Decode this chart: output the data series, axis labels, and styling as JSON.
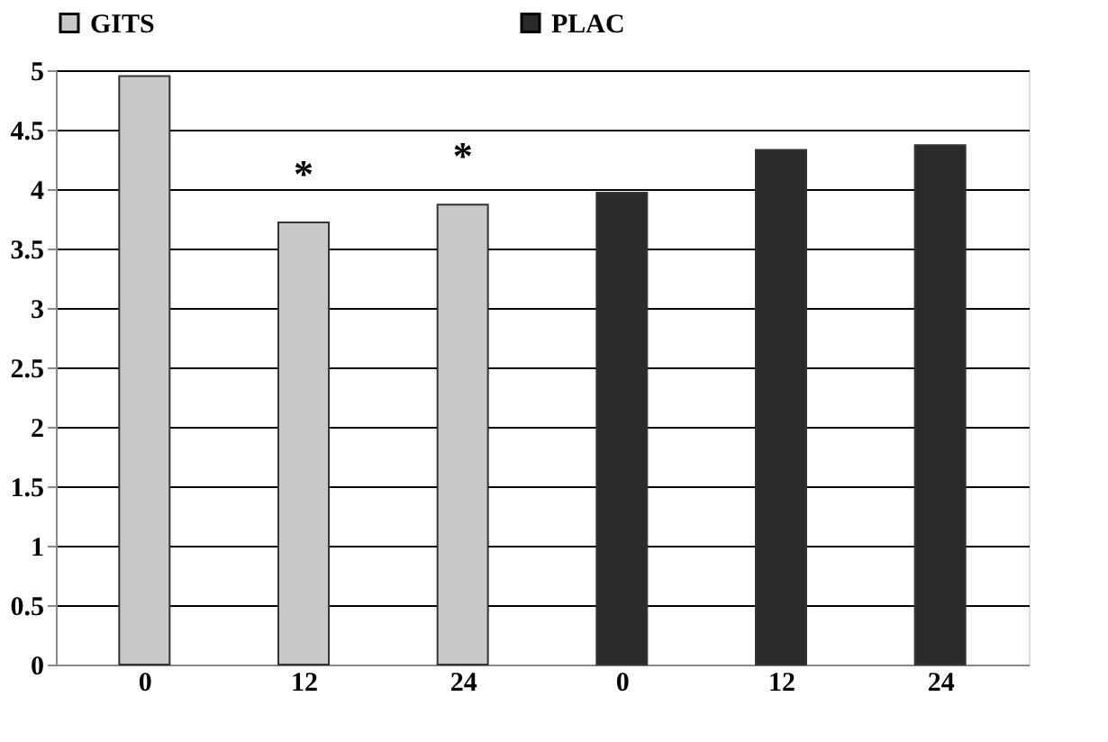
{
  "chart_data": {
    "type": "bar",
    "categories": [
      "0",
      "12",
      "24",
      "0",
      "12",
      "24"
    ],
    "series": [
      {
        "name": "GITS",
        "color": "#c8c8c8",
        "values": [
          4.95,
          3.72,
          3.87,
          null,
          null,
          null
        ]
      },
      {
        "name": "PLAC",
        "color": "#2a2a2a",
        "values": [
          null,
          null,
          null,
          3.97,
          4.33,
          4.37
        ]
      }
    ],
    "ylim": [
      0,
      5
    ],
    "yticks": [
      0,
      0.5,
      1,
      1.5,
      2,
      2.5,
      3,
      3.5,
      4,
      4.5,
      5
    ],
    "grid": "y",
    "legend": "top",
    "annotations": [
      "*",
      "*"
    ]
  }
}
